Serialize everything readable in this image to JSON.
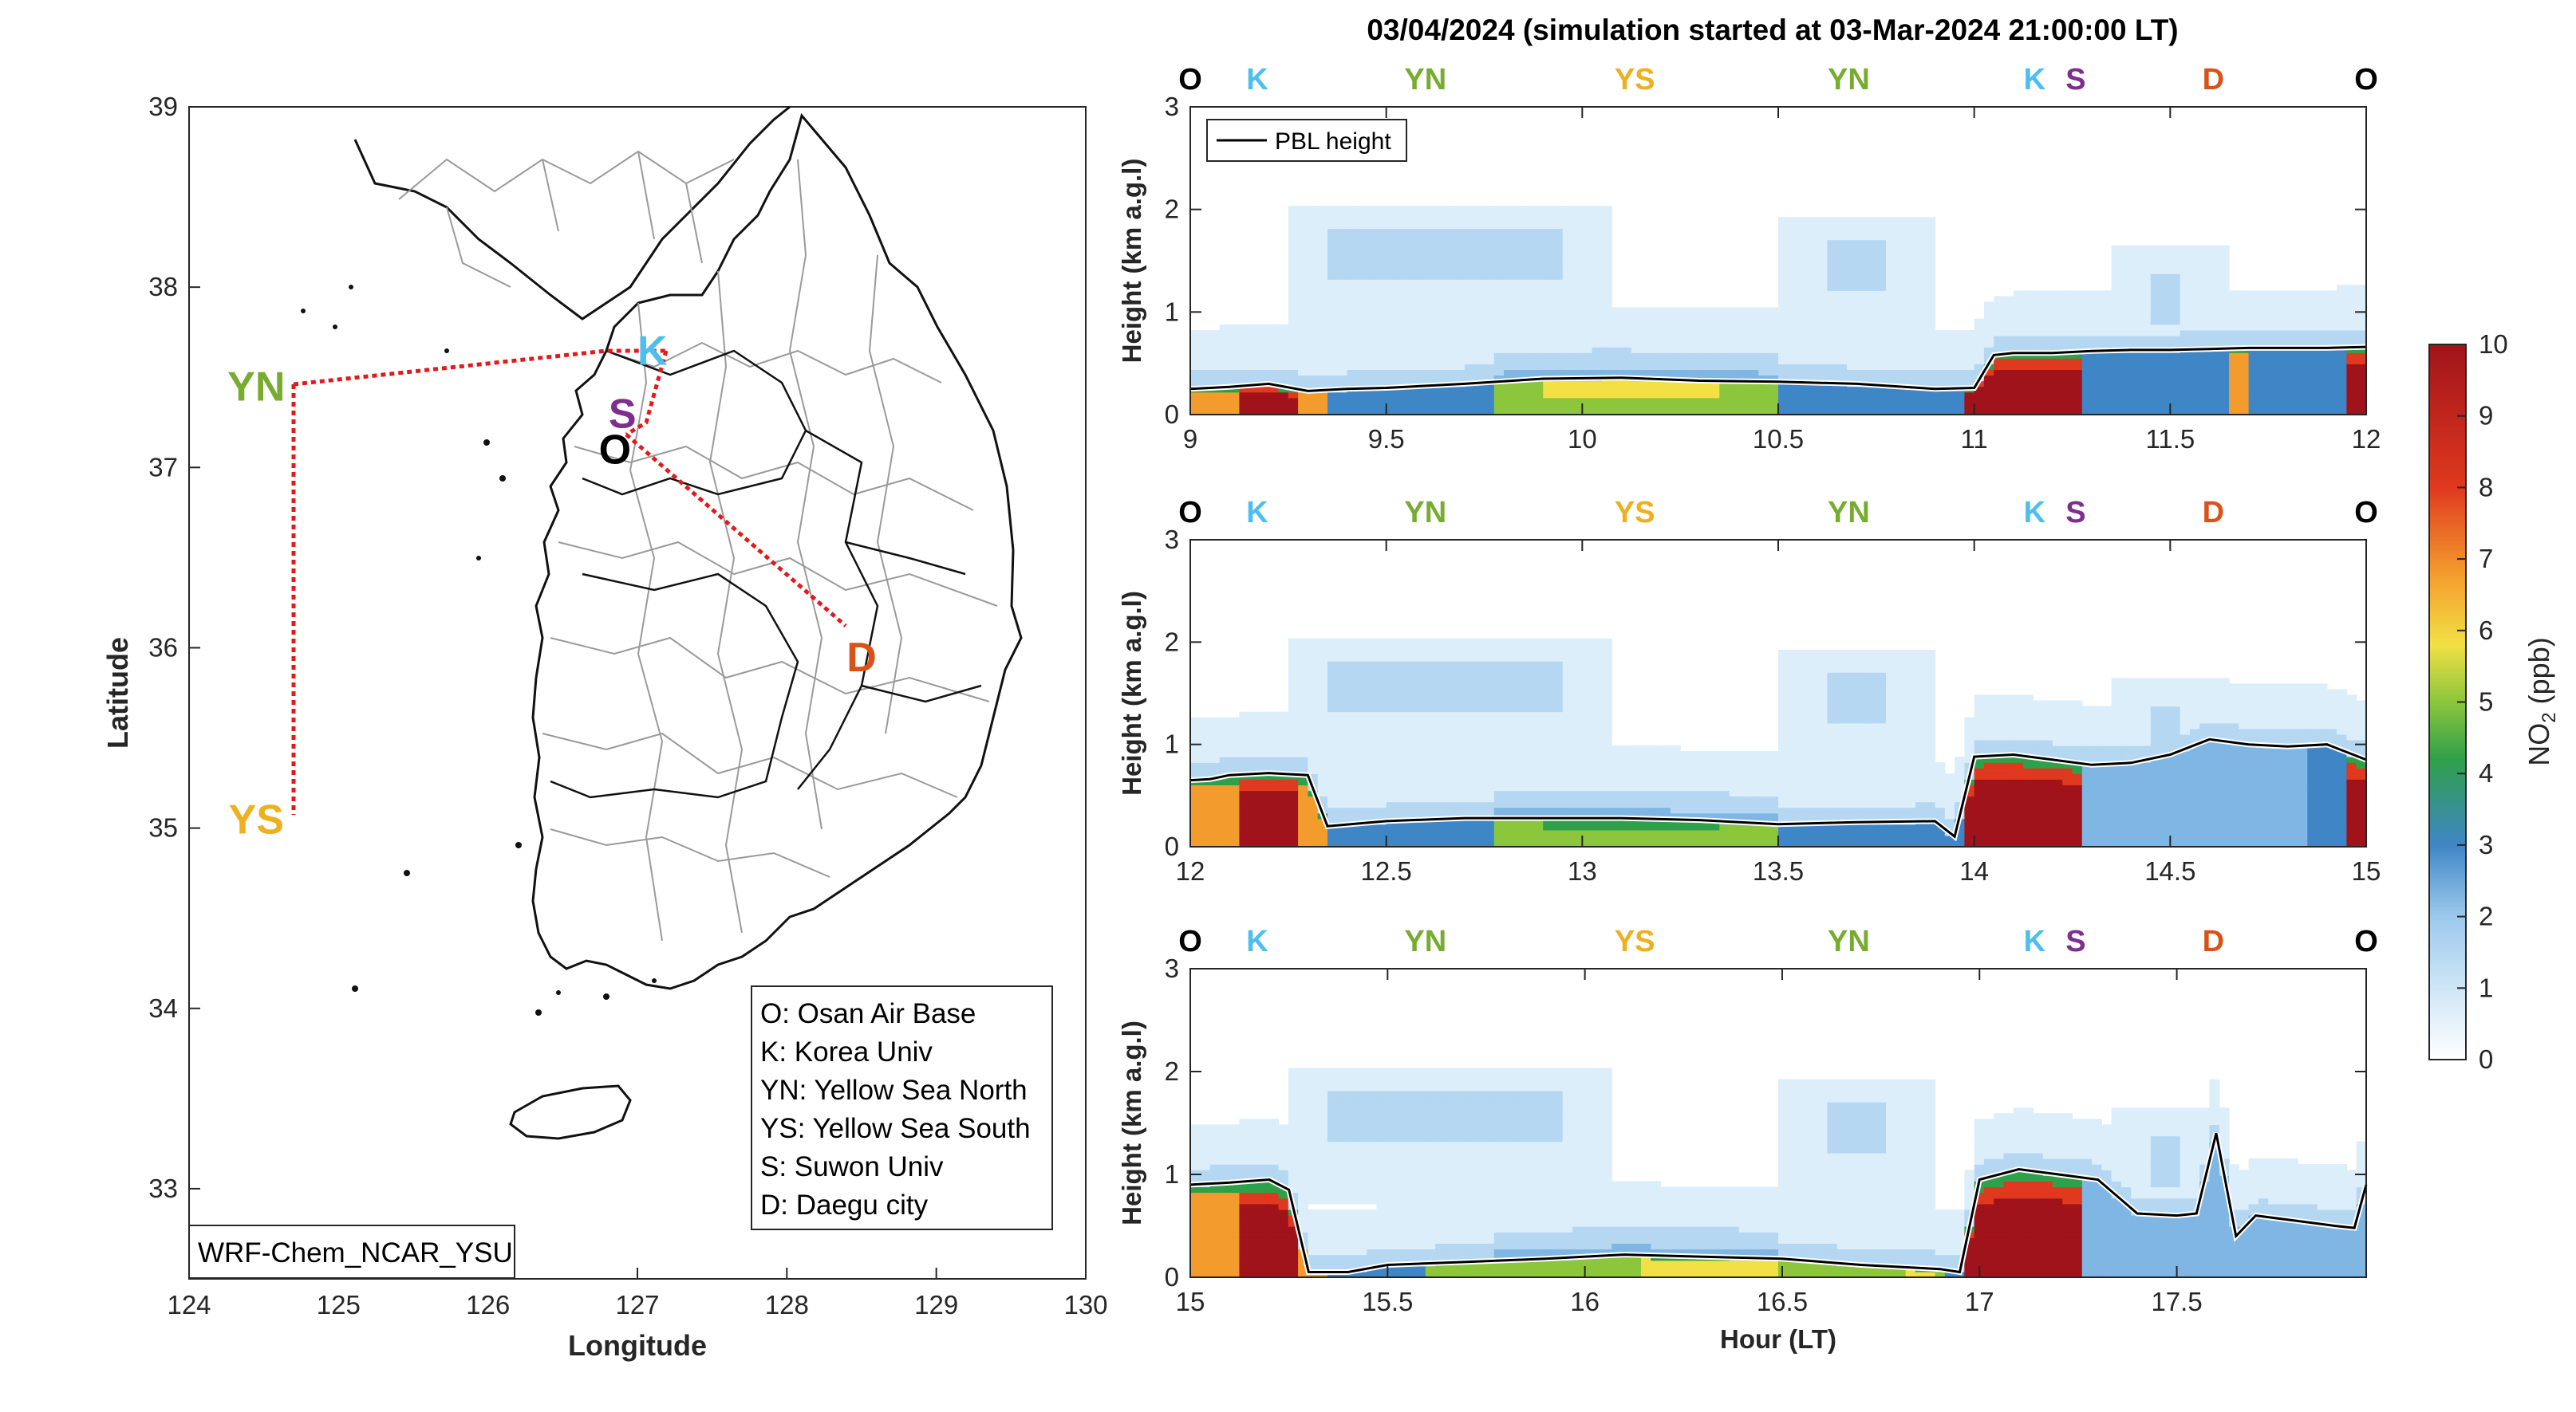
{
  "title": "03/04/2024 (simulation started at 03-Mar-2024 21:00:00 LT)",
  "colors": {
    "O": "#000000",
    "K": "#4DBEEE",
    "YN": "#77AC30",
    "YS": "#EDB120",
    "S": "#7E2F8E",
    "D": "#D95319",
    "route": "#e31a1c"
  },
  "map": {
    "xlabel": "Longitude",
    "ylabel": "Latitude",
    "xticks": [
      "124",
      "125",
      "126",
      "127",
      "128",
      "129",
      "130"
    ],
    "yticks": [
      "33",
      "34",
      "35",
      "36",
      "37",
      "38",
      "39"
    ],
    "model_label": "WRF-Chem_NCAR_YSU",
    "site_labels": [
      {
        "code": "YN",
        "lon": 124.45,
        "lat": 37.45
      },
      {
        "code": "YS",
        "lon": 124.45,
        "lat": 35.05
      },
      {
        "code": "K",
        "lon": 127.1,
        "lat": 37.65
      },
      {
        "code": "S",
        "lon": 126.9,
        "lat": 37.3
      },
      {
        "code": "O",
        "lon": 126.85,
        "lat": 37.1
      },
      {
        "code": "D",
        "lon": 128.5,
        "lat": 35.95
      }
    ],
    "legend": [
      "O: Osan Air Base",
      "K: Korea Univ",
      "YN: Yellow Sea North",
      "YS: Yellow Sea South",
      "S: Suwon Univ",
      "D: Daegu city"
    ]
  },
  "site_sequence": [
    "O",
    "K",
    "YN",
    "YS",
    "YN",
    "K",
    "S",
    "D",
    "O"
  ],
  "pbl_legend": "PBL height",
  "colorbar": {
    "label_main": "NO",
    "label_sub": "2",
    "label_unit": " (ppb)",
    "ticks": [
      "0",
      "1",
      "2",
      "3",
      "4",
      "5",
      "6",
      "7",
      "8",
      "9",
      "10"
    ]
  },
  "panel_ylabel": "Height (km a.g.l)",
  "bottom_xlabel": "Hour (LT)",
  "panels": [
    {
      "xticks": [
        "9",
        "9.5",
        "10",
        "10.5",
        "11",
        "11.5",
        "12"
      ],
      "yticks": [
        "0",
        "1",
        "2",
        "3"
      ]
    },
    {
      "xticks": [
        "12",
        "12.5",
        "13",
        "13.5",
        "14",
        "14.5",
        "15"
      ],
      "yticks": [
        "0",
        "1",
        "2",
        "3"
      ]
    },
    {
      "xticks": [
        "15",
        "15.5",
        "16",
        "16.5",
        "17",
        "17.5"
      ],
      "yticks": [
        "0",
        "1",
        "2",
        "3"
      ]
    }
  ],
  "chart_data": [
    {
      "type": "line",
      "title": "03/04/2024 (simulation started at 03-Mar-2024 21:00:00 LT)",
      "xlabel": "",
      "ylabel": "Height (km a.g.l)",
      "xlim": [
        9,
        12
      ],
      "ylim": [
        0,
        3
      ],
      "series": [
        {
          "name": "PBL height",
          "x": [
            9.0,
            9.1,
            9.2,
            9.3,
            9.4,
            9.5,
            9.7,
            9.9,
            10.1,
            10.3,
            10.5,
            10.7,
            10.9,
            11.0,
            11.05,
            11.1,
            11.2,
            11.3,
            11.4,
            11.5,
            11.6,
            11.7,
            11.8,
            11.9,
            12.0
          ],
          "y": [
            0.25,
            0.27,
            0.3,
            0.23,
            0.25,
            0.26,
            0.3,
            0.35,
            0.36,
            0.33,
            0.32,
            0.3,
            0.25,
            0.26,
            0.58,
            0.6,
            0.6,
            0.62,
            0.63,
            0.63,
            0.64,
            0.65,
            0.65,
            0.65,
            0.66
          ]
        }
      ],
      "colorbar": {
        "label": "NO2 (ppb)",
        "lim": [
          0,
          10
        ]
      }
    },
    {
      "type": "line",
      "xlabel": "",
      "ylabel": "Height (km a.g.l)",
      "xlim": [
        12,
        15
      ],
      "ylim": [
        0,
        3
      ],
      "series": [
        {
          "name": "PBL height",
          "x": [
            12.0,
            12.05,
            12.1,
            12.2,
            12.3,
            12.35,
            12.5,
            12.7,
            12.9,
            13.1,
            13.3,
            13.5,
            13.7,
            13.9,
            13.95,
            14.0,
            14.1,
            14.2,
            14.3,
            14.4,
            14.5,
            14.6,
            14.7,
            14.8,
            14.9,
            15.0
          ],
          "y": [
            0.65,
            0.66,
            0.7,
            0.72,
            0.7,
            0.2,
            0.25,
            0.28,
            0.28,
            0.28,
            0.26,
            0.22,
            0.24,
            0.25,
            0.1,
            0.88,
            0.9,
            0.85,
            0.8,
            0.82,
            0.9,
            1.05,
            1.0,
            0.98,
            1.0,
            0.85
          ]
        }
      ],
      "colorbar": {
        "label": "NO2 (ppb)",
        "lim": [
          0,
          10
        ]
      }
    },
    {
      "type": "line",
      "xlabel": "Hour (LT)",
      "ylabel": "Height (km a.g.l)",
      "xlim": [
        15,
        17.98
      ],
      "ylim": [
        0,
        3
      ],
      "series": [
        {
          "name": "PBL height",
          "x": [
            15.0,
            15.1,
            15.2,
            15.25,
            15.3,
            15.4,
            15.5,
            15.7,
            15.9,
            16.1,
            16.3,
            16.5,
            16.7,
            16.9,
            16.95,
            17.0,
            17.1,
            17.2,
            17.3,
            17.4,
            17.5,
            17.55,
            17.6,
            17.62,
            17.65,
            17.7,
            17.8,
            17.9,
            17.95,
            17.98
          ],
          "y": [
            0.9,
            0.92,
            0.95,
            0.85,
            0.05,
            0.05,
            0.12,
            0.15,
            0.18,
            0.22,
            0.2,
            0.18,
            0.12,
            0.08,
            0.05,
            0.95,
            1.05,
            1.0,
            0.95,
            0.62,
            0.6,
            0.62,
            1.4,
            1.0,
            0.4,
            0.6,
            0.55,
            0.5,
            0.48,
            0.9
          ]
        }
      ],
      "colorbar": {
        "label": "NO2 (ppb)",
        "lim": [
          0,
          10
        ]
      }
    }
  ]
}
